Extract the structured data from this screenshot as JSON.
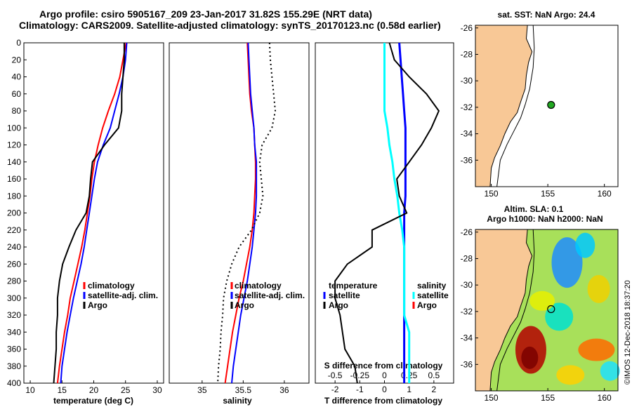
{
  "header": {
    "line1": "Argo profile: csiro 5905167_209 23-Jan-2017 31.82S 155.29E (NRT data)",
    "line2": "Climatology: CARS2009. Satellite-adjusted climatology: synTS_20170123.nc (0.58d earlier)"
  },
  "credit": "©IMOS 12-Dec-2018 18:37:20",
  "colors": {
    "climatology": "#ff0000",
    "satellite": "#0000ff",
    "argo": "#000000",
    "sat_salinity": "#00ffff",
    "land": "#f8c896"
  },
  "chart_data": [
    {
      "type": "line",
      "name": "temperature",
      "xlabel": "temperature (deg C)",
      "xlim": [
        9,
        31
      ],
      "ylim": [
        0,
        400
      ],
      "xticks": [
        "10",
        "15",
        "20",
        "25",
        "30"
      ],
      "depth_ticks": [
        "0",
        "20",
        "40",
        "60",
        "80",
        "100",
        "120",
        "140",
        "160",
        "180",
        "200",
        "220",
        "240",
        "260",
        "280",
        "300",
        "320",
        "340",
        "360",
        "380",
        "400"
      ],
      "legend": [
        "climatology",
        "satellite-adj. clim.",
        "Argo"
      ],
      "series": [
        {
          "name": "climatology",
          "x": [
            25.1,
            24.6,
            24.1,
            23.3,
            22.3,
            21.4,
            20.7,
            20.1,
            19.7,
            19.4,
            19.0,
            18.6,
            18.1,
            17.5,
            16.9,
            16.3,
            15.9,
            15.4,
            15.0,
            14.6,
            14.3
          ],
          "y": [
            0,
            20,
            40,
            60,
            80,
            100,
            120,
            140,
            160,
            180,
            200,
            220,
            240,
            260,
            280,
            300,
            320,
            340,
            360,
            380,
            400
          ]
        },
        {
          "name": "satellite-adj. clim.",
          "x": [
            25.2,
            25.0,
            24.6,
            24.0,
            23.3,
            22.6,
            21.5,
            20.6,
            20.1,
            19.7,
            19.3,
            18.9,
            18.5,
            18.0,
            17.4,
            16.8,
            16.3,
            15.8,
            15.4,
            15.0,
            14.8
          ],
          "y": [
            0,
            20,
            40,
            60,
            80,
            100,
            120,
            140,
            160,
            180,
            200,
            220,
            240,
            260,
            280,
            300,
            320,
            340,
            360,
            380,
            400
          ]
        },
        {
          "name": "Argo",
          "x": [
            24.8,
            24.8,
            24.6,
            24.4,
            24.4,
            23.9,
            21.7,
            19.8,
            19.5,
            19.3,
            18.8,
            17.2,
            16.1,
            15.1,
            14.6,
            14.3,
            14.3,
            14.1,
            14.1,
            13.9,
            13.7
          ],
          "y": [
            0,
            20,
            40,
            60,
            80,
            100,
            120,
            140,
            160,
            180,
            200,
            220,
            240,
            260,
            280,
            300,
            320,
            340,
            360,
            380,
            400
          ]
        }
      ]
    },
    {
      "type": "line",
      "name": "salinity",
      "xlabel": "salinity",
      "xlim": [
        34.6,
        36.3
      ],
      "ylim": [
        0,
        400
      ],
      "xticks": [
        "35",
        "35.5",
        "36"
      ],
      "legend": [
        "climatology",
        "satellite-adj. clim.",
        "Argo"
      ],
      "series": [
        {
          "name": "climatology",
          "x": [
            35.55,
            35.56,
            35.57,
            35.58,
            35.6,
            35.63,
            35.64,
            35.65,
            35.65,
            35.64,
            35.63,
            35.61,
            35.58,
            35.54,
            35.5,
            35.45,
            35.41,
            35.37,
            35.34,
            35.31,
            35.28
          ],
          "y": [
            0,
            20,
            40,
            60,
            80,
            100,
            120,
            140,
            160,
            180,
            200,
            220,
            240,
            260,
            280,
            300,
            320,
            340,
            360,
            380,
            400
          ]
        },
        {
          "name": "satellite-adj. clim.",
          "x": [
            35.56,
            35.57,
            35.58,
            35.59,
            35.61,
            35.63,
            35.64,
            35.66,
            35.66,
            35.66,
            35.65,
            35.63,
            35.61,
            35.58,
            35.55,
            35.51,
            35.47,
            35.44,
            35.41,
            35.38,
            35.36
          ],
          "y": [
            0,
            20,
            40,
            60,
            80,
            100,
            120,
            140,
            160,
            180,
            200,
            220,
            240,
            260,
            280,
            300,
            320,
            340,
            360,
            380,
            400
          ]
        },
        {
          "name": "Argo",
          "x": [
            35.82,
            35.83,
            35.85,
            35.87,
            35.89,
            35.85,
            35.73,
            35.7,
            35.72,
            35.74,
            35.7,
            35.6,
            35.45,
            35.36,
            35.3,
            35.26,
            35.25,
            35.23,
            35.22,
            35.2,
            35.19
          ],
          "y": [
            0,
            20,
            40,
            60,
            80,
            100,
            120,
            140,
            160,
            180,
            200,
            220,
            240,
            260,
            280,
            300,
            320,
            340,
            360,
            380,
            400
          ]
        }
      ]
    },
    {
      "type": "line",
      "name": "difference from climatology",
      "xlabel": "T difference from climatology",
      "top_axis_label": "S difference from climatology",
      "xlim": [
        -2.8,
        2.8
      ],
      "ylim": [
        0,
        400
      ],
      "xticks": [
        "-2",
        "-1",
        "0",
        "1",
        "2"
      ],
      "top_ticks": [
        "-0.5",
        "-0.25",
        "0",
        "0.25",
        "0.5"
      ],
      "legend_temperature": [
        "temperature",
        "satellite",
        "Argo"
      ],
      "legend_salinity": [
        "salinity",
        "satellite",
        "Argo"
      ],
      "series": [
        {
          "name": "T satellite",
          "x": [
            0.6,
            0.65,
            0.7,
            0.75,
            0.8,
            0.85,
            0.85,
            0.85,
            0.85,
            0.85,
            0.8,
            0.8,
            0.8,
            0.8,
            0.8,
            0.8,
            0.8,
            0.8,
            0.8,
            0.8,
            0.8
          ],
          "y": [
            0,
            20,
            40,
            60,
            80,
            100,
            120,
            140,
            160,
            180,
            200,
            220,
            240,
            260,
            280,
            300,
            320,
            340,
            360,
            380,
            400
          ]
        },
        {
          "name": "S satellite",
          "x": [
            0.0,
            0.0,
            0.0,
            0.0,
            0.0,
            0.03,
            0.05,
            0.08,
            0.1,
            0.13,
            0.15,
            0.18,
            0.2,
            0.2,
            0.2,
            0.2,
            0.2,
            0.25,
            0.25,
            0.25,
            0.25
          ],
          "y": [
            0,
            20,
            40,
            60,
            80,
            100,
            120,
            140,
            160,
            180,
            200,
            220,
            240,
            260,
            280,
            300,
            320,
            340,
            360,
            380,
            400
          ]
        },
        {
          "name": "T Argo",
          "x": [
            0.2,
            0.4,
            1.0,
            1.7,
            2.2,
            1.9,
            1.5,
            1.0,
            0.5,
            0.6,
            0.9,
            -0.5,
            -0.5,
            -1.5,
            -2.0,
            -2.0,
            -1.8,
            -1.7,
            -1.6,
            -1.2,
            -1.1
          ],
          "y": [
            0,
            20,
            40,
            60,
            80,
            100,
            120,
            140,
            160,
            180,
            200,
            220,
            240,
            260,
            280,
            300,
            320,
            340,
            360,
            380,
            400
          ]
        }
      ]
    },
    {
      "type": "map",
      "name": "sea surface temperature",
      "title": "sat. SST: NaN Argo: 24.4",
      "xticks": [
        "150",
        "155",
        "160"
      ],
      "yticks": [
        "-26",
        "-28",
        "-30",
        "-32",
        "-34",
        "-36"
      ],
      "float_lon": 155.29,
      "float_lat": -31.82
    },
    {
      "type": "map",
      "name": "altimetry sea level anomaly",
      "title1": "Altim. SLA: 0.1",
      "title2": "Argo h1000: NaN h2000: NaN",
      "xticks": [
        "150",
        "155",
        "160"
      ],
      "yticks": [
        "-26",
        "-28",
        "-30",
        "-32",
        "-34",
        "-36"
      ],
      "float_lon": 155.29,
      "float_lat": -31.82
    }
  ]
}
